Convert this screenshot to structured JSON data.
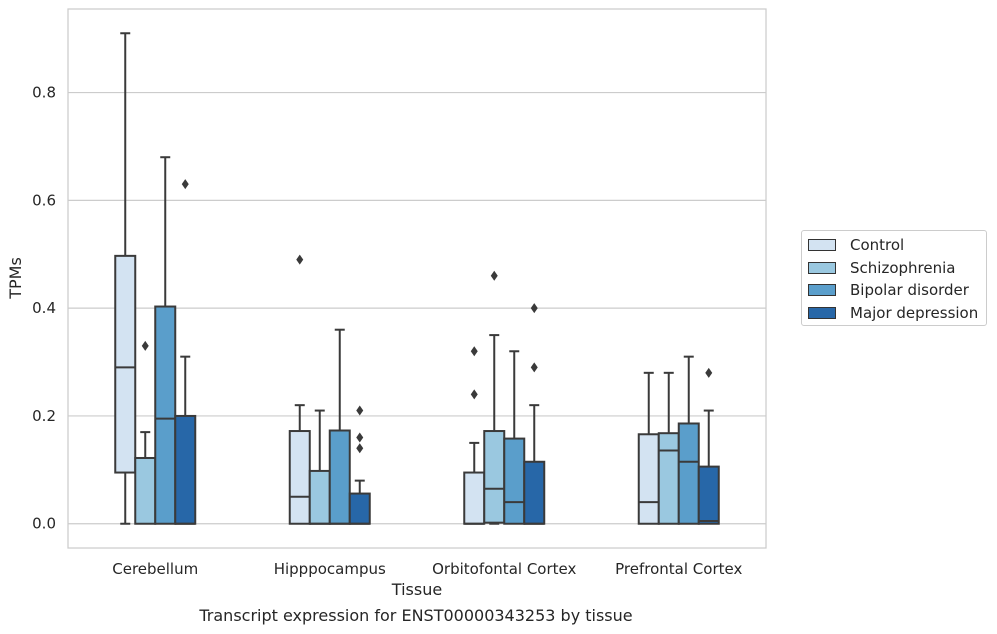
{
  "chart_data": {
    "type": "box",
    "title": "",
    "caption": "Transcript expression for ENST00000343253 by tissue",
    "xlabel": "Tissue",
    "ylabel": "TPMs",
    "ylim": [
      -0.045,
      0.955
    ],
    "yticks": [
      0.0,
      0.2,
      0.4,
      0.6,
      0.8
    ],
    "ytick_labels": [
      "0.0",
      "0.2",
      "0.4",
      "0.6",
      "0.8"
    ],
    "grid": "horizontal",
    "legend_position": "right",
    "categories": [
      "Cerebellum",
      "Hipppocampus",
      "Orbitofontal Cortex",
      "Prefrontal Cortex"
    ],
    "series": [
      {
        "name": "Control",
        "color": "#d3e3f2",
        "boxes": [
          {
            "q1": 0.095,
            "median": 0.29,
            "q3": 0.497,
            "whisker_low": 0.0,
            "whisker_high": 0.91,
            "outliers": []
          },
          {
            "q1": 0.0,
            "median": 0.05,
            "q3": 0.172,
            "whisker_low": 0.0,
            "whisker_high": 0.22,
            "outliers": [
              0.49
            ]
          },
          {
            "q1": 0.0,
            "median": 0.0,
            "q3": 0.095,
            "whisker_low": 0.0,
            "whisker_high": 0.15,
            "outliers": [
              0.24,
              0.32
            ]
          },
          {
            "q1": 0.0,
            "median": 0.04,
            "q3": 0.166,
            "whisker_low": 0.0,
            "whisker_high": 0.28,
            "outliers": []
          }
        ]
      },
      {
        "name": "Schizophrenia",
        "color": "#9ac8e0",
        "boxes": [
          {
            "q1": 0.0,
            "median": 0.122,
            "q3": 0.122,
            "whisker_low": 0.0,
            "whisker_high": 0.17,
            "outliers": [
              0.33
            ]
          },
          {
            "q1": 0.0,
            "median": 0.0,
            "q3": 0.098,
            "whisker_low": 0.0,
            "whisker_high": 0.21,
            "outliers": []
          },
          {
            "q1": 0.002,
            "median": 0.065,
            "q3": 0.172,
            "whisker_low": 0.0,
            "whisker_high": 0.35,
            "outliers": [
              0.46
            ]
          },
          {
            "q1": 0.0,
            "median": 0.136,
            "q3": 0.168,
            "whisker_low": 0.0,
            "whisker_high": 0.28,
            "outliers": []
          }
        ]
      },
      {
        "name": "Bipolar disorder",
        "color": "#5a9ecb",
        "boxes": [
          {
            "q1": 0.0,
            "median": 0.195,
            "q3": 0.403,
            "whisker_low": 0.0,
            "whisker_high": 0.68,
            "outliers": []
          },
          {
            "q1": 0.0,
            "median": 0.0,
            "q3": 0.173,
            "whisker_low": 0.0,
            "whisker_high": 0.36,
            "outliers": []
          },
          {
            "q1": 0.0,
            "median": 0.04,
            "q3": 0.158,
            "whisker_low": 0.0,
            "whisker_high": 0.32,
            "outliers": []
          },
          {
            "q1": 0.0,
            "median": 0.115,
            "q3": 0.186,
            "whisker_low": 0.0,
            "whisker_high": 0.31,
            "outliers": []
          }
        ]
      },
      {
        "name": "Major depression",
        "color": "#2767a8",
        "boxes": [
          {
            "q1": 0.0,
            "median": 0.0,
            "q3": 0.2,
            "whisker_low": 0.0,
            "whisker_high": 0.31,
            "outliers": [
              0.63
            ]
          },
          {
            "q1": 0.0,
            "median": 0.0,
            "q3": 0.056,
            "whisker_low": 0.0,
            "whisker_high": 0.08,
            "outliers": [
              0.14,
              0.16,
              0.21
            ]
          },
          {
            "q1": 0.0,
            "median": 0.0,
            "q3": 0.115,
            "whisker_low": 0.0,
            "whisker_high": 0.22,
            "outliers": [
              0.29,
              0.4
            ]
          },
          {
            "q1": 0.0,
            "median": 0.005,
            "q3": 0.106,
            "whisker_low": 0.0,
            "whisker_high": 0.21,
            "outliers": [
              0.28
            ]
          }
        ]
      }
    ]
  }
}
